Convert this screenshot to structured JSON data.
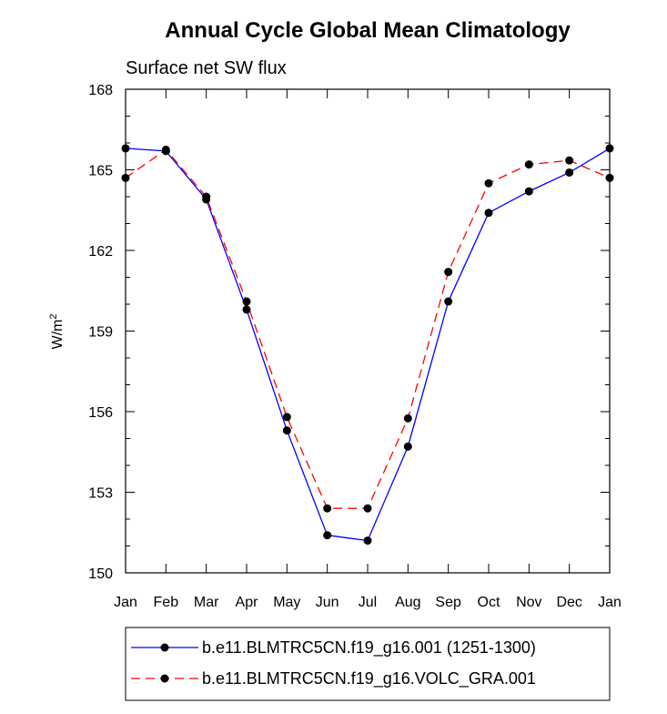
{
  "chart_data": {
    "type": "line",
    "title": "Annual Cycle Global Mean Climatology",
    "subtitle": "Surface net SW flux",
    "ylabel_base": "W/m",
    "ylabel_sup": "2",
    "xlabel": "",
    "categories": [
      "Jan",
      "Feb",
      "Mar",
      "Apr",
      "May",
      "Jun",
      "Jul",
      "Aug",
      "Sep",
      "Oct",
      "Nov",
      "Dec",
      "Jan"
    ],
    "ylim": [
      150,
      168
    ],
    "yticks": [
      150,
      153,
      156,
      159,
      162,
      165,
      168
    ],
    "grid": false,
    "legend_position": "bottom",
    "series": [
      {
        "name": "b.e11.BLMTRC5CN.f19_g16.001 (1251-1300)",
        "color": "#0000ff",
        "dash": "solid",
        "marker": "filled-circle",
        "values": [
          165.8,
          165.7,
          163.9,
          159.8,
          155.3,
          151.4,
          151.2,
          154.7,
          160.1,
          163.4,
          164.2,
          164.9,
          165.8
        ]
      },
      {
        "name": "b.e11.BLMTRC5CN.f19_g16.VOLC_GRA.001",
        "color": "#ff0000",
        "dash": "dashed",
        "marker": "filled-circle",
        "values": [
          164.7,
          165.75,
          164.0,
          160.1,
          155.8,
          152.4,
          152.4,
          155.75,
          161.2,
          164.5,
          165.2,
          165.35,
          164.7
        ]
      }
    ]
  }
}
